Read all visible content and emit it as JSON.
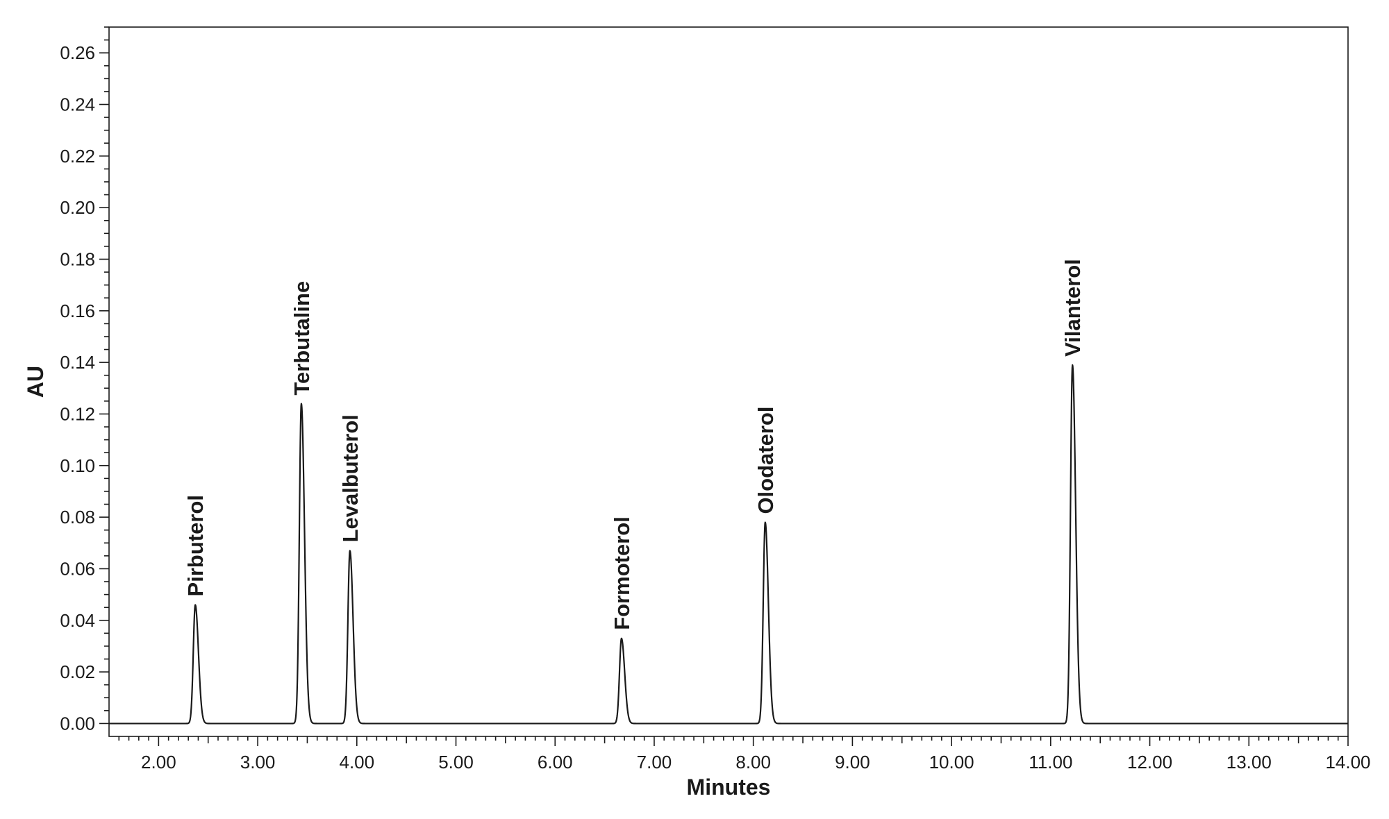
{
  "chart_data": {
    "type": "line",
    "xlabel": "Minutes",
    "ylabel": "AU",
    "xlim": [
      1.5,
      14.0
    ],
    "ylim": [
      -0.005,
      0.27
    ],
    "x_ticks": [
      "2.00",
      "3.00",
      "4.00",
      "5.00",
      "6.00",
      "7.00",
      "8.00",
      "9.00",
      "10.00",
      "11.00",
      "12.00",
      "13.00",
      "14.00"
    ],
    "y_ticks": [
      "0.00",
      "0.02",
      "0.04",
      "0.06",
      "0.08",
      "0.10",
      "0.12",
      "0.14",
      "0.16",
      "0.18",
      "0.20",
      "0.22",
      "0.24",
      "0.26"
    ],
    "grid": false,
    "baseline": 0.0,
    "peaks": [
      {
        "name": "Pirbuterol",
        "x": 2.37,
        "y": 0.046
      },
      {
        "name": "Terbutaline",
        "x": 3.44,
        "y": 0.124
      },
      {
        "name": "Levalbuterol",
        "x": 3.93,
        "y": 0.067
      },
      {
        "name": "Formoterol",
        "x": 6.67,
        "y": 0.033
      },
      {
        "name": "Olodaterol",
        "x": 8.12,
        "y": 0.078
      },
      {
        "name": "Vilanterol",
        "x": 11.22,
        "y": 0.139
      }
    ]
  }
}
